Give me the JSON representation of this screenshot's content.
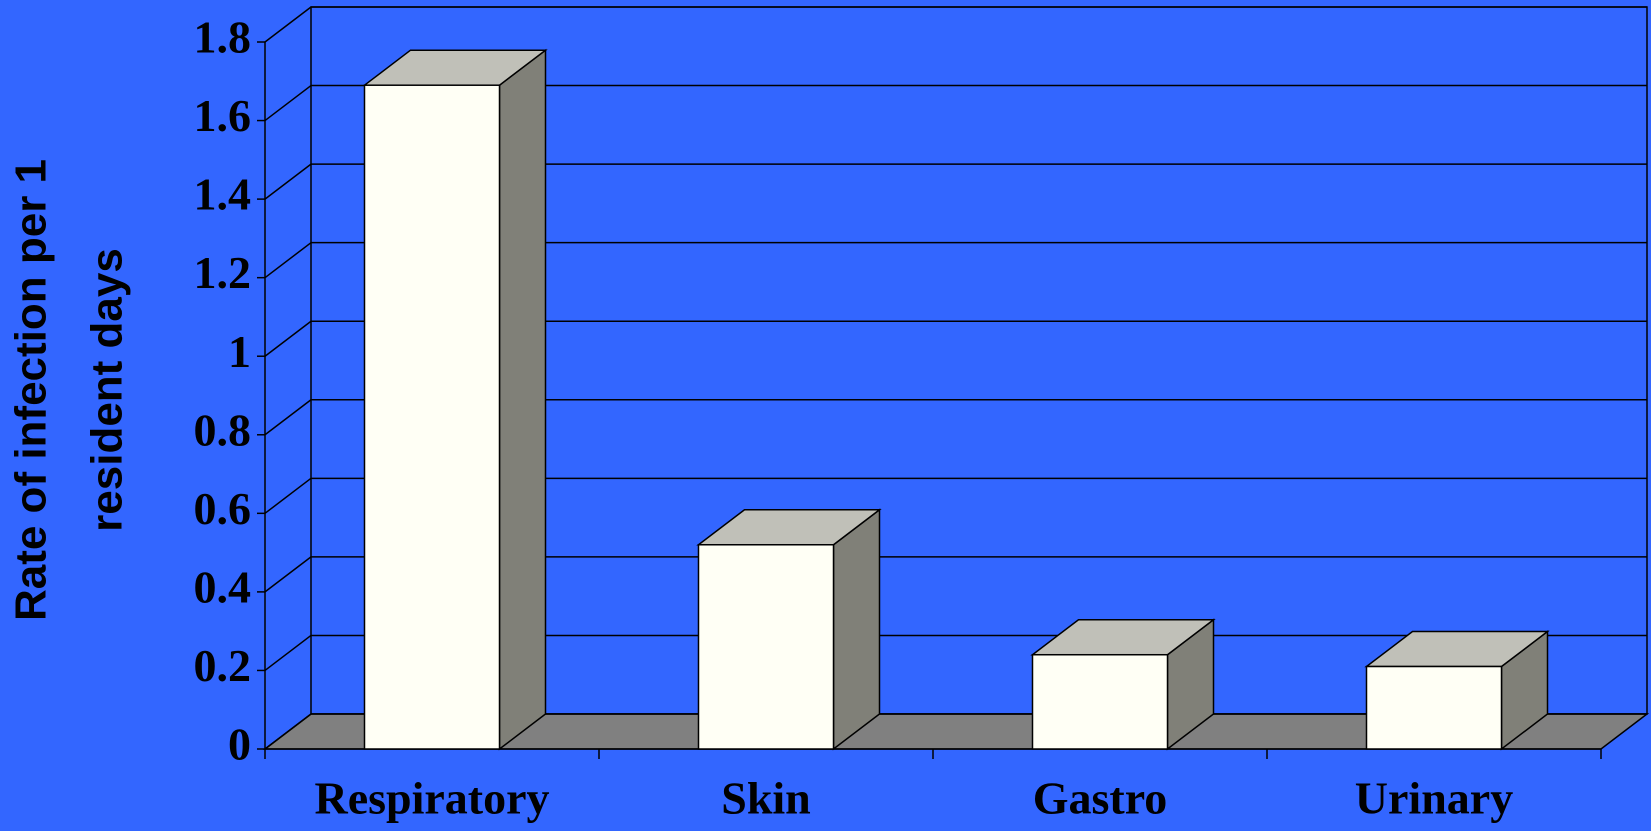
{
  "chart_data": {
    "type": "bar3d",
    "y_label_lines": [
      "Rate of infection per 1",
      "resident days"
    ],
    "categories": [
      "Respiratory",
      "Skin",
      "Gastro",
      "Urinary"
    ],
    "values": [
      1.69,
      0.52,
      0.24,
      0.21
    ],
    "color": "#fffff5",
    "ylim": [
      0,
      1.8
    ],
    "yticks": [
      0,
      0.2,
      0.4,
      0.6,
      0.8,
      1,
      1.2,
      1.4,
      1.6,
      1.8
    ],
    "grid": true
  }
}
